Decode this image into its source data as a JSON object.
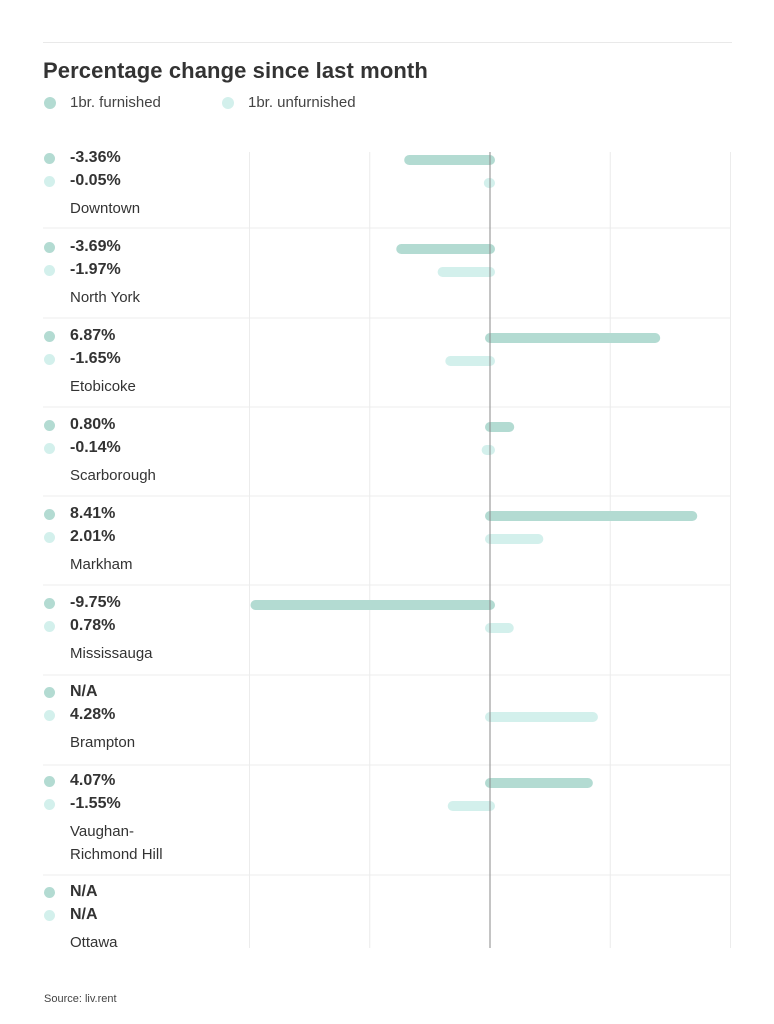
{
  "chart_data": {
    "type": "bar",
    "orientation": "horizontal",
    "title": "Percentage change since last month",
    "legend_position": "top-left",
    "grid": true,
    "xlim": [
      -10,
      10
    ],
    "categories": [
      "Downtown",
      "North York",
      "Etobicoke",
      "Scarborough",
      "Markham",
      "Mississauga",
      "Brampton",
      "Vaughan-\nRichmond Hill",
      "Ottawa"
    ],
    "series": [
      {
        "name": "1br. furnished",
        "color": "#b3dbd2",
        "values": [
          -3.36,
          -3.69,
          6.87,
          0.8,
          8.41,
          -9.75,
          null,
          4.07,
          null
        ],
        "labels": [
          "-3.36%",
          "-3.69%",
          "6.87%",
          "0.80%",
          "8.41%",
          "-9.75%",
          "N/A",
          "4.07%",
          "N/A"
        ]
      },
      {
        "name": "1br. unfurnished",
        "color": "#d3f0ec",
        "values": [
          -0.05,
          -1.97,
          -1.65,
          -0.14,
          2.01,
          0.78,
          4.28,
          -1.55,
          null
        ],
        "labels": [
          "-0.05%",
          "-1.97%",
          "-1.65%",
          "-0.14%",
          "2.01%",
          "0.78%",
          "4.28%",
          "-1.55%",
          "N/A"
        ]
      }
    ],
    "source": "Source: liv.rent"
  }
}
